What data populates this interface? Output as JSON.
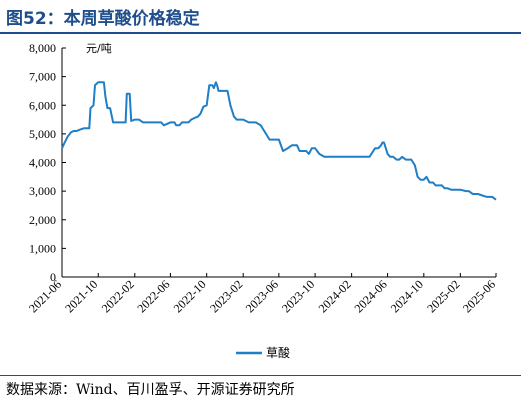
{
  "figure": {
    "title": "图52：本周草酸价格稳定",
    "source": "数据来源：Wind、百川盈孚、开源证券研究所"
  },
  "colors": {
    "accent": "#1f4e8c",
    "series": "#1f7fc6"
  },
  "chart_data": {
    "type": "line",
    "title": "",
    "xlabel": "",
    "ylabel": "元/吨",
    "ylim": [
      0,
      8000
    ],
    "yticks": [
      0,
      1000,
      2000,
      3000,
      4000,
      5000,
      6000,
      7000,
      8000
    ],
    "ytick_labels": [
      "0",
      "1,000",
      "2,000",
      "3,000",
      "4,000",
      "5,000",
      "6,000",
      "7,000",
      "8,000"
    ],
    "xlim": [
      "2021-06",
      "2025-06"
    ],
    "xticks": [
      "2021-06",
      "2021-10",
      "2022-02",
      "2022-06",
      "2022-10",
      "2023-02",
      "2023-06",
      "2023-10",
      "2024-02",
      "2024-06",
      "2024-10",
      "2025-02",
      "2025-06"
    ],
    "grid": false,
    "legend_position": "bottom-right",
    "series": [
      {
        "name": "草酸",
        "x": [
          "2021-06-01",
          "2021-06-10",
          "2021-06-20",
          "2021-07-01",
          "2021-07-10",
          "2021-07-20",
          "2021-08-01",
          "2021-08-15",
          "2021-09-01",
          "2021-09-05",
          "2021-09-15",
          "2021-09-20",
          "2021-10-01",
          "2021-10-20",
          "2021-10-25",
          "2021-11-01",
          "2021-11-10",
          "2021-11-20",
          "2021-12-01",
          "2021-12-20",
          "2022-01-01",
          "2022-01-05",
          "2022-01-15",
          "2022-01-20",
          "2022-02-01",
          "2022-02-15",
          "2022-03-01",
          "2022-04-01",
          "2022-05-01",
          "2022-05-10",
          "2022-06-01",
          "2022-06-15",
          "2022-06-20",
          "2022-07-01",
          "2022-07-10",
          "2022-08-01",
          "2022-08-10",
          "2022-08-20",
          "2022-09-01",
          "2022-09-10",
          "2022-09-20",
          "2022-10-01",
          "2022-10-10",
          "2022-10-20",
          "2022-10-25",
          "2022-11-01",
          "2022-11-05",
          "2022-11-10",
          "2022-12-01",
          "2022-12-10",
          "2022-12-20",
          "2023-01-01",
          "2023-01-10",
          "2023-02-01",
          "2023-02-20",
          "2023-03-01",
          "2023-03-15",
          "2023-04-01",
          "2023-05-01",
          "2023-05-10",
          "2023-06-01",
          "2023-06-15",
          "2023-07-01",
          "2023-07-15",
          "2023-08-01",
          "2023-08-10",
          "2023-09-01",
          "2023-09-10",
          "2023-09-20",
          "2023-10-01",
          "2023-10-15",
          "2023-11-01",
          "2023-11-15",
          "2023-12-01",
          "2023-12-15",
          "2024-01-01",
          "2024-02-01",
          "2024-03-01",
          "2024-04-01",
          "2024-04-20",
          "2024-05-01",
          "2024-05-10",
          "2024-05-15",
          "2024-05-20",
          "2024-06-01",
          "2024-06-10",
          "2024-06-20",
          "2024-07-01",
          "2024-07-10",
          "2024-07-20",
          "2024-08-01",
          "2024-08-20",
          "2024-09-01",
          "2024-09-10",
          "2024-09-20",
          "2024-10-01",
          "2024-10-10",
          "2024-10-20",
          "2024-11-01",
          "2024-11-10",
          "2024-11-20",
          "2024-12-01",
          "2024-12-10",
          "2024-12-20",
          "2025-01-01",
          "2025-01-10",
          "2025-02-01",
          "2025-02-20",
          "2025-03-01",
          "2025-03-15",
          "2025-04-01",
          "2025-05-01",
          "2025-05-20",
          "2025-06-01"
        ],
        "values": [
          4500,
          4700,
          4900,
          5050,
          5100,
          5100,
          5150,
          5200,
          5200,
          5900,
          6000,
          6700,
          6800,
          6800,
          6300,
          5900,
          5900,
          5400,
          5400,
          5400,
          5400,
          6400,
          6400,
          5450,
          5500,
          5500,
          5400,
          5400,
          5400,
          5300,
          5400,
          5400,
          5300,
          5300,
          5400,
          5400,
          5500,
          5550,
          5600,
          5700,
          5950,
          6000,
          6700,
          6700,
          6600,
          6800,
          6700,
          6500,
          6500,
          6500,
          6000,
          5600,
          5500,
          5500,
          5400,
          5400,
          5400,
          5300,
          4800,
          4800,
          4800,
          4400,
          4500,
          4600,
          4600,
          4400,
          4400,
          4300,
          4500,
          4500,
          4300,
          4200,
          4200,
          4200,
          4200,
          4200,
          4200,
          4200,
          4200,
          4500,
          4500,
          4600,
          4700,
          4700,
          4300,
          4200,
          4200,
          4100,
          4100,
          4200,
          4100,
          4100,
          3900,
          3500,
          3400,
          3400,
          3500,
          3300,
          3300,
          3200,
          3200,
          3200,
          3100,
          3100,
          3050,
          3050,
          3050,
          3000,
          3000,
          2900,
          2900,
          2800,
          2800,
          2700
        ]
      }
    ]
  }
}
